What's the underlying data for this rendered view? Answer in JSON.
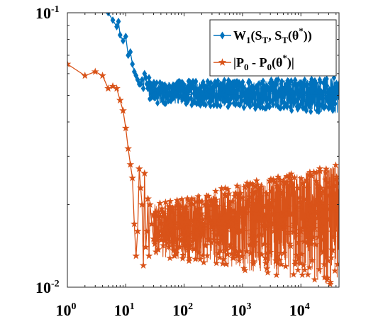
{
  "chart_data": {
    "type": "line",
    "x_scale": "log",
    "y_scale": "log",
    "xlim": [
      1,
      45000
    ],
    "ylim": [
      0.01,
      0.1
    ],
    "x_ticks": [
      {
        "value": 1,
        "base": "10",
        "exp": "0"
      },
      {
        "value": 10,
        "base": "10",
        "exp": "1"
      },
      {
        "value": 100,
        "base": "10",
        "exp": "2"
      },
      {
        "value": 1000,
        "base": "10",
        "exp": "3"
      },
      {
        "value": 10000,
        "base": "10",
        "exp": "4"
      }
    ],
    "y_ticks": [
      {
        "value": 0.01,
        "base": "10",
        "exp": "-2"
      },
      {
        "value": 0.1,
        "base": "10",
        "exp": "-1"
      }
    ],
    "grid": false,
    "legend_position": "top-right",
    "series": [
      {
        "name": "W1(ST, ST(θ*))",
        "legend": {
          "w": "W",
          "w_sub": "1",
          "a": "(S",
          "a_sub": "T",
          "b": ", S",
          "b_sub": "T",
          "c": "(θ",
          "c_sup": "*",
          "d": "))"
        },
        "color": "#0072BD",
        "marker": "diamond",
        "x": [
          5,
          6,
          7,
          7.5,
          8,
          9,
          10,
          11,
          12,
          13,
          14,
          15,
          16,
          17,
          18,
          19,
          20,
          21,
          22,
          23,
          24,
          25,
          27,
          30,
          35,
          40,
          50,
          70,
          100,
          200,
          500,
          1000,
          5000,
          10000,
          45000
        ],
        "y": [
          0.1,
          0.094,
          0.089,
          0.093,
          0.083,
          0.079,
          0.082,
          0.07,
          0.072,
          0.065,
          0.061,
          0.059,
          0.057,
          0.055,
          0.055,
          0.057,
          0.053,
          0.06,
          0.058,
          0.055,
          0.053,
          0.058,
          0.052,
          0.05,
          0.052,
          0.052,
          0.05,
          0.051,
          0.05,
          0.051,
          0.05,
          0.05,
          0.051,
          0.05,
          0.05
        ],
        "band": {
          "x_start": 25,
          "x_end": 45000,
          "low_start": 0.047,
          "low_end": 0.043,
          "high_start": 0.056,
          "high_end": 0.058
        }
      },
      {
        "name": "|P0 - P0(θ*)|",
        "legend": {
          "a": "|P",
          "a_sub": "0",
          "b": " - P",
          "b_sub": "0",
          "c": "(θ",
          "c_sup": "*",
          "d": ")|"
        },
        "color": "#D95319",
        "marker": "pentagram",
        "x": [
          1,
          2,
          3,
          4,
          5,
          6,
          7,
          8,
          9,
          10,
          11,
          12,
          13,
          14,
          15,
          16,
          17,
          18,
          19,
          20,
          21,
          22,
          23,
          24,
          25,
          26,
          28,
          30,
          35,
          40,
          50,
          70,
          100,
          200,
          500,
          1000,
          5000,
          10000,
          45000
        ],
        "y": [
          0.065,
          0.059,
          0.061,
          0.059,
          0.053,
          0.054,
          0.053,
          0.048,
          0.044,
          0.038,
          0.032,
          0.028,
          0.025,
          0.017,
          0.013,
          0.016,
          0.027,
          0.023,
          0.02,
          0.012,
          0.026,
          0.014,
          0.016,
          0.021,
          0.013,
          0.02,
          0.017,
          0.015,
          0.016,
          0.016,
          0.017,
          0.015,
          0.016,
          0.016,
          0.017,
          0.016,
          0.017,
          0.016,
          0.016
        ],
        "band": {
          "x_start": 30,
          "x_end": 45000,
          "low_start": 0.013,
          "low_end": 0.01,
          "high_start": 0.02,
          "high_end": 0.028
        }
      }
    ]
  }
}
